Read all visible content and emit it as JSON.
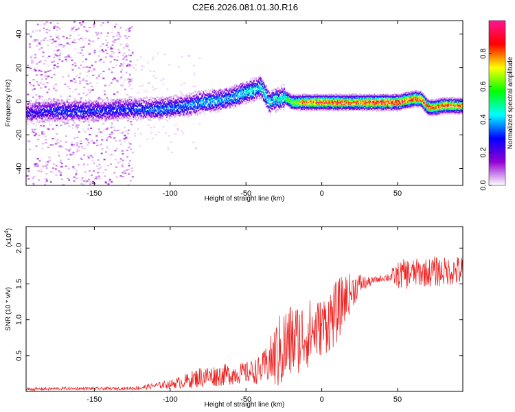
{
  "title": "C2E6.2026.081.01.30.R16",
  "colormap": [
    "#ff1493",
    "#ff0000",
    "#ffff00",
    "#00ff00",
    "#00ffff",
    "#0000ff",
    "#9400d3",
    "#ffffff"
  ],
  "chart_data": [
    {
      "type": "heatmap",
      "xlabel": "Height of straight line (km)",
      "ylabel": "Frequency (Hz)",
      "xlim": [
        -195,
        93
      ],
      "ylim": [
        -50,
        48
      ],
      "xticks": [
        -150,
        -100,
        -50,
        0,
        50
      ],
      "yticks": [
        -40,
        -20,
        0,
        20,
        40
      ],
      "colorbar": {
        "label": "Normalized spectral amplitude",
        "range": [
          0,
          1
        ],
        "ticks": [
          "0.0",
          "0.2",
          "0.4",
          "0.6",
          "0.8"
        ]
      },
      "ridge": {
        "x": [
          -195,
          -175,
          -150,
          -130,
          -110,
          -100,
          -90,
          -80,
          -70,
          -60,
          -50,
          -40,
          -35,
          -30,
          -25,
          -20,
          -10,
          0,
          10,
          20,
          30,
          40,
          50,
          60,
          65,
          70,
          75,
          80,
          90,
          93
        ],
        "y": [
          -6,
          -5,
          -5,
          -4,
          -4,
          -3,
          -2,
          0,
          1,
          3,
          6,
          9,
          0,
          2,
          3,
          0,
          0,
          0,
          0,
          0,
          0,
          0,
          0,
          2,
          2,
          -3,
          -3,
          -2,
          -2,
          -2
        ],
        "peak_amplitude": [
          0.25,
          0.3,
          0.3,
          0.3,
          0.35,
          0.35,
          0.35,
          0.4,
          0.4,
          0.4,
          0.45,
          0.45,
          0.45,
          0.45,
          0.5,
          0.6,
          0.8,
          0.85,
          0.85,
          0.8,
          0.85,
          0.9,
          0.9,
          0.85,
          0.85,
          0.8,
          0.8,
          0.8,
          0.75,
          0.75
        ]
      }
    },
    {
      "type": "line",
      "xlabel": "Height of straight line (km)",
      "ylabel": "SNR (10 * v/v)",
      "y_multiplier": "(x10^4)",
      "xlim": [
        -195,
        93
      ],
      "ylim": [
        0,
        2.3
      ],
      "xticks": [
        -150,
        -100,
        -50,
        0,
        50
      ],
      "yticks": [
        "0.5",
        "1.0",
        "1.5",
        "2.0"
      ],
      "series": [
        {
          "color": "#ee2222",
          "x": [
            -195,
            -170,
            -150,
            -130,
            -120,
            -110,
            -100,
            -90,
            -80,
            -70,
            -60,
            -50,
            -40,
            -35,
            -30,
            -25,
            -20,
            -15,
            -10,
            -5,
            0,
            5,
            10,
            15,
            20,
            25,
            30,
            35,
            40,
            45,
            50,
            55,
            60,
            65,
            70,
            75,
            80,
            85,
            90,
            93
          ],
          "y": [
            0.03,
            0.04,
            0.04,
            0.04,
            0.05,
            0.08,
            0.1,
            0.14,
            0.2,
            0.22,
            0.24,
            0.26,
            0.3,
            0.4,
            0.5,
            0.6,
            0.7,
            0.75,
            0.8,
            0.85,
            0.9,
            1.0,
            1.1,
            1.3,
            1.4,
            1.5,
            1.52,
            1.55,
            1.58,
            1.6,
            1.62,
            1.64,
            1.65,
            1.66,
            1.66,
            1.67,
            1.67,
            1.68,
            1.68,
            1.68
          ],
          "noise": [
            0.02,
            0.02,
            0.02,
            0.02,
            0.03,
            0.04,
            0.06,
            0.1,
            0.15,
            0.15,
            0.15,
            0.15,
            0.2,
            0.3,
            0.5,
            0.6,
            0.55,
            0.5,
            0.5,
            0.45,
            0.4,
            0.45,
            0.45,
            0.35,
            0.25,
            0.15,
            0.08,
            0.05,
            0.04,
            0.08,
            0.18,
            0.22,
            0.2,
            0.2,
            0.2,
            0.22,
            0.2,
            0.2,
            0.22,
            0.22
          ]
        }
      ]
    }
  ]
}
